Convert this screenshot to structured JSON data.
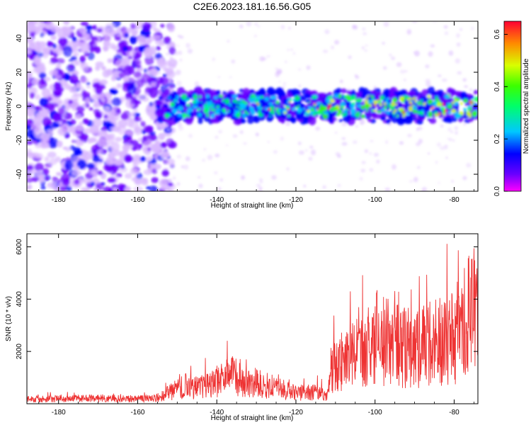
{
  "title": "C2E6.2023.181.16.56.G05",
  "colors": {
    "snr_line": "#ee3333",
    "spectrum_core": "#5a00e0",
    "colorbar_stops": [
      "#ff00ff",
      "#6a00ff",
      "#0000ff",
      "#00c8ff",
      "#00ff6a",
      "#3cff00",
      "#d8ff00",
      "#ff8a00",
      "#ff0033"
    ]
  },
  "chart_data": [
    {
      "type": "heatmap",
      "title": "C2E6.2023.181.16.56.G05",
      "xlabel": "Height of straight line (km)",
      "ylabel": "Frequency (Hz)",
      "xlim": [
        -188,
        -74
      ],
      "ylim": [
        -50,
        50
      ],
      "x_ticks": [
        -180,
        -160,
        -140,
        -120,
        -100,
        -80
      ],
      "y_ticks": [
        -40,
        -20,
        0,
        20,
        40
      ],
      "grid": false,
      "colormap": "gist_rainbow-like",
      "colorbar": {
        "label": "Normalized spectral amplitude",
        "range": [
          0.0,
          0.65
        ],
        "ticks": [
          0.0,
          0.2,
          0.4,
          0.6
        ]
      },
      "features": [
        {
          "region": "x -188 to -152 km",
          "description_value": "scattered noise, amplitude ~0.05–0.15 across full frequency range"
        },
        {
          "region": "x -155 to -74 km",
          "description_value": "band centered near 0 Hz, width about ±8 Hz, amplitude 0.15–0.6"
        }
      ],
      "band_center_hz": 0,
      "band_halfwidth_hz": 8,
      "band_start_km": -155
    },
    {
      "type": "line",
      "xlabel": "Height of straight line (km)",
      "ylabel": "SNR (10 * v/v)",
      "xlim": [
        -188,
        -74
      ],
      "ylim": [
        0,
        6500
      ],
      "x_ticks": [
        -180,
        -160,
        -140,
        -120,
        -100,
        -80
      ],
      "y_ticks": [
        2000,
        4000,
        6000
      ],
      "grid": false,
      "series": [
        {
          "x": [
            -188,
            -180,
            -170,
            -160,
            -155,
            -150,
            -148,
            -145,
            -140,
            -137,
            -134,
            -130,
            -125,
            -120,
            -115,
            -112,
            -111,
            -108,
            -105,
            -102,
            -100,
            -98,
            -95,
            -90,
            -85,
            -80,
            -78,
            -76,
            -74
          ],
          "y": [
            200,
            200,
            220,
            200,
            250,
            600,
            750,
            650,
            900,
            1200,
            1000,
            850,
            650,
            450,
            500,
            300,
            1500,
            1800,
            2000,
            2300,
            2700,
            2600,
            2400,
            2300,
            2500,
            2900,
            3300,
            3900,
            3600
          ]
        }
      ]
    }
  ]
}
